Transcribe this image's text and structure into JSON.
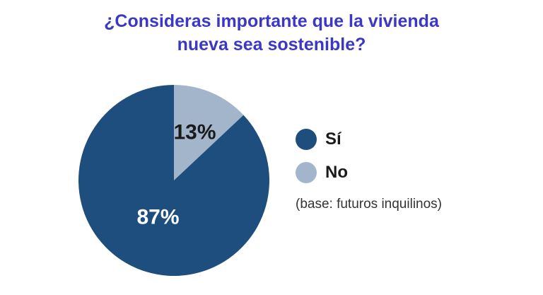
{
  "title": {
    "line1": "¿Consideras importante que la vivienda",
    "line2": "nueva sea sostenible?"
  },
  "note": "(base: futuros inquilinos)",
  "colors": {
    "title": "#3a38c4",
    "si": "#1d4e7e",
    "no": "#a3b5ca"
  },
  "chart_data": {
    "type": "pie",
    "title": "¿Consideras importante que la vivienda nueva sea sostenible?",
    "start": "12 o'clock, clockwise",
    "slices": [
      {
        "name": "No",
        "value": 13,
        "label": "13%",
        "color": "#a3b5ca",
        "label_color": "#1a1a1a"
      },
      {
        "name": "Sí",
        "value": 87,
        "label": "87%",
        "color": "#1d4e7e",
        "label_color": "#ffffff"
      }
    ],
    "legend": {
      "placement": "right",
      "entries": [
        {
          "label": "Sí",
          "color": "#1d4e7e"
        },
        {
          "label": "No",
          "color": "#a3b5ca"
        }
      ]
    }
  }
}
